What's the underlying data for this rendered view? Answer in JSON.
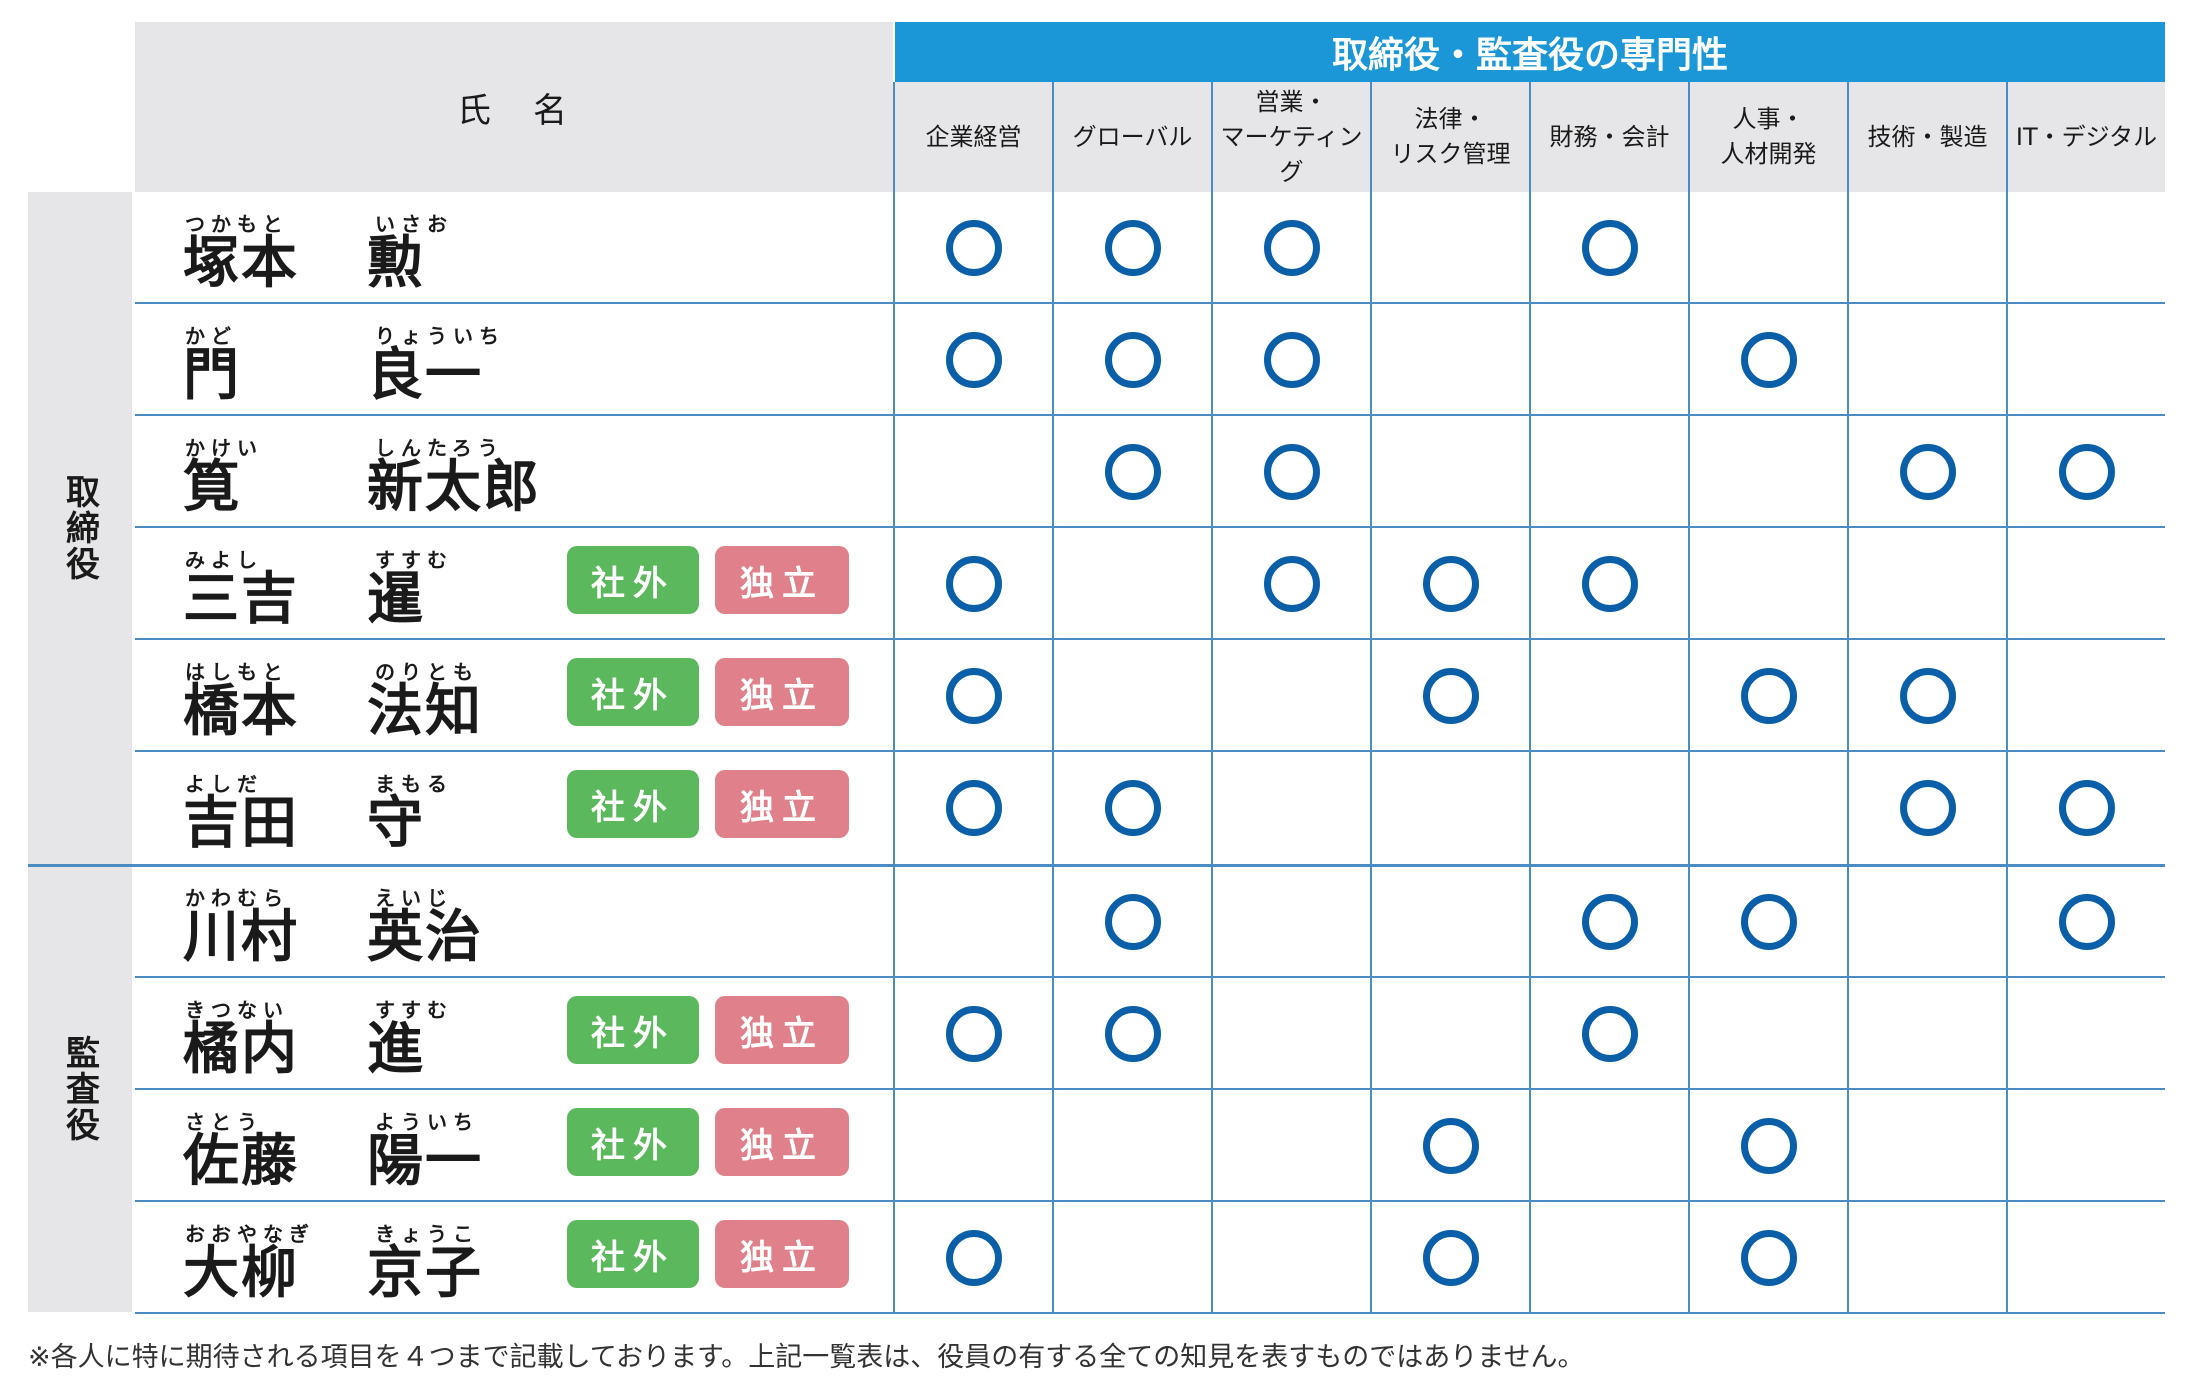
{
  "header": {
    "name_label": "氏　名",
    "band_title": "取締役・監査役の専門性",
    "columns": [
      "企業経営",
      "グローバル",
      "営業・\nマーケティング",
      "法律・\nリスク管理",
      "財務・会計",
      "人事・\n人材開発",
      "技術・製造",
      "IT・デジタル"
    ]
  },
  "groups": [
    {
      "label": "取締役"
    },
    {
      "label": "監査役"
    }
  ],
  "badges": {
    "outside": "社外",
    "independent": "独立"
  },
  "mark_glyph": "○",
  "colors": {
    "accent": "#1b96d6",
    "mark": "#0a5fa8",
    "outside_badge": "#5cb85c",
    "independent_badge": "#e0808a",
    "header_bg": "#e6e6e8"
  },
  "people": [
    {
      "surname": "塚本",
      "surname_ruby": "つかもと",
      "given": "勲",
      "given_ruby": "いさお",
      "outside": false,
      "marks": [
        1,
        1,
        1,
        0,
        1,
        0,
        0,
        0
      ]
    },
    {
      "surname": "門",
      "surname_ruby": "かど",
      "given": "良一",
      "given_ruby": "りょういち",
      "outside": false,
      "marks": [
        1,
        1,
        1,
        0,
        0,
        1,
        0,
        0
      ]
    },
    {
      "surname": "筧",
      "surname_ruby": "かけい",
      "given": "新太郎",
      "given_ruby": "しんたろう",
      "outside": false,
      "marks": [
        0,
        1,
        1,
        0,
        0,
        0,
        1,
        1
      ]
    },
    {
      "surname": "三吉",
      "surname_ruby": "みよし",
      "given": "暹",
      "given_ruby": "すすむ",
      "outside": true,
      "marks": [
        1,
        0,
        1,
        1,
        1,
        0,
        0,
        0
      ]
    },
    {
      "surname": "橋本",
      "surname_ruby": "はしもと",
      "given": "法知",
      "given_ruby": "のりとも",
      "outside": true,
      "marks": [
        1,
        0,
        0,
        1,
        0,
        1,
        1,
        0
      ]
    },
    {
      "surname": "吉田",
      "surname_ruby": "よしだ",
      "given": "守",
      "given_ruby": "まもる",
      "outside": true,
      "marks": [
        1,
        1,
        0,
        0,
        0,
        0,
        1,
        1
      ]
    },
    {
      "surname": "川村",
      "surname_ruby": "かわむら",
      "given": "英治",
      "given_ruby": "えいじ",
      "outside": false,
      "marks": [
        0,
        1,
        0,
        0,
        1,
        1,
        0,
        1
      ]
    },
    {
      "surname": "橘内",
      "surname_ruby": "きつない",
      "given": "進",
      "given_ruby": "すすむ",
      "outside": true,
      "marks": [
        1,
        1,
        0,
        0,
        1,
        0,
        0,
        0
      ]
    },
    {
      "surname": "佐藤",
      "surname_ruby": "さとう",
      "given": "陽一",
      "given_ruby": "よういち",
      "outside": true,
      "marks": [
        0,
        0,
        0,
        1,
        0,
        1,
        0,
        0
      ]
    },
    {
      "surname": "大柳",
      "surname_ruby": "おおやなぎ",
      "given": "京子",
      "given_ruby": "きょうこ",
      "outside": true,
      "marks": [
        1,
        0,
        0,
        1,
        0,
        1,
        0,
        0
      ]
    }
  ],
  "footnote": "※各人に特に期待される項目を４つまで記載しております。上記一覧表は、役員の有する全ての知見を表すものではありません。"
}
